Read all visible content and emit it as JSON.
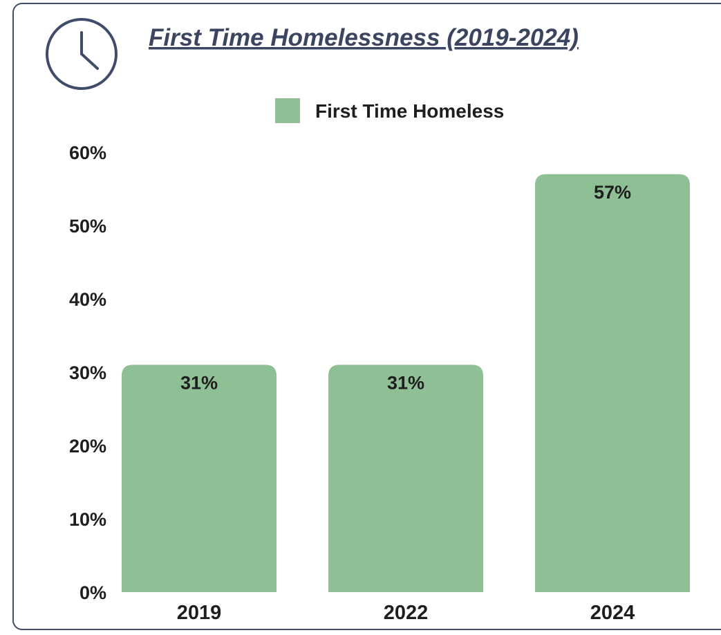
{
  "chart_data": {
    "type": "bar",
    "title": "First Time Homelessness (2019-2024)",
    "xlabel": "",
    "ylabel": "",
    "categories": [
      "2019",
      "2022",
      "2024"
    ],
    "series": [
      {
        "name": "First Time Homeless",
        "values": [
          31,
          31,
          57
        ],
        "data_labels": [
          "31%",
          "31%",
          "57%"
        ],
        "color": "#8fbf94"
      }
    ],
    "ylim": [
      0,
      60
    ],
    "yticks": [
      0,
      10,
      20,
      30,
      40,
      50,
      60
    ],
    "ytick_labels": [
      "0%",
      "10%",
      "20%",
      "30%",
      "40%",
      "50%",
      "60%"
    ],
    "grid": false,
    "legend_position": "top-center"
  },
  "colors": {
    "border": "#3f4d6b",
    "text": "#1e1e1e",
    "title": "#3b4560",
    "icon": "#3f4d6b"
  },
  "icons": {
    "header": "clock-icon"
  }
}
